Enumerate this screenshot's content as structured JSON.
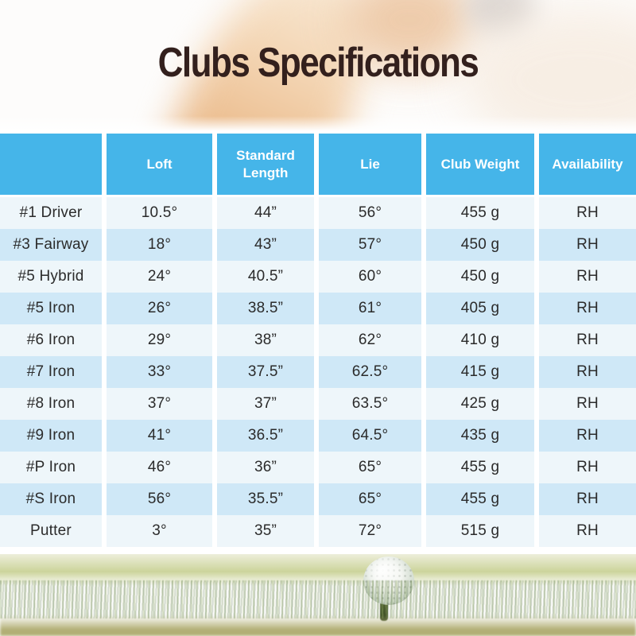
{
  "title": "Clubs Specifications",
  "table": {
    "columns": [
      "",
      "Loft",
      "Standard Length",
      "Lie",
      "Club Weight",
      "Availability"
    ],
    "rows": [
      [
        "#1 Driver",
        "10.5°",
        "44”",
        "56°",
        "455 g",
        "RH"
      ],
      [
        "#3 Fairway",
        "18°",
        "43”",
        "57°",
        "450 g",
        "RH"
      ],
      [
        "#5 Hybrid",
        "24°",
        "40.5”",
        "60°",
        "450 g",
        "RH"
      ],
      [
        "#5 Iron",
        "26°",
        "38.5”",
        "61°",
        "405 g",
        "RH"
      ],
      [
        "#6 Iron",
        "29°",
        "38”",
        "62°",
        "410 g",
        "RH"
      ],
      [
        "#7 Iron",
        "33°",
        "37.5”",
        "62.5°",
        "415 g",
        "RH"
      ],
      [
        "#8 Iron",
        "37°",
        "37”",
        "63.5°",
        "425 g",
        "RH"
      ],
      [
        "#9 Iron",
        "41°",
        "36.5”",
        "64.5°",
        "435 g",
        "RH"
      ],
      [
        "#P Iron",
        "46°",
        "36”",
        "65°",
        "455 g",
        "RH"
      ],
      [
        "#S Iron",
        "56°",
        "35.5”",
        "65°",
        "455 g",
        "RH"
      ],
      [
        "Putter",
        "3°",
        "35”",
        "72°",
        "515 g",
        "RH"
      ]
    ]
  },
  "colors": {
    "header_bg": "#45b5e9",
    "row_light": "#eef6fa",
    "row_alt": "#cfe8f7",
    "title_color": "#33201d",
    "header_text": "#ffffff",
    "cell_text": "#2b2b2b"
  }
}
